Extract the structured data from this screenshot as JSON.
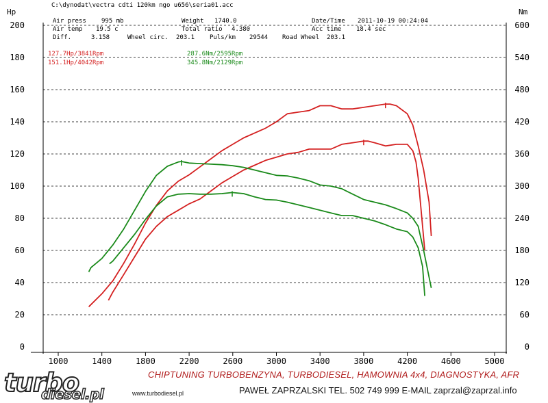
{
  "header": {
    "file_path": "C:\\dynodat\\vectra cdti 120km ngo u656\\seria01.acc",
    "row1": [
      {
        "label": "Air press",
        "value": "995 mb"
      },
      {
        "label": "Weight",
        "value": "1740.0"
      },
      {
        "label": "Date/Time",
        "value": "2011-10-19 00:24:04"
      }
    ],
    "row2": [
      {
        "label": "Air temp",
        "value": "19.5 c"
      },
      {
        "label": "Total ratio",
        "value": "4.380"
      },
      {
        "label": "Acc time",
        "value": "18.4 sec"
      }
    ],
    "row3": [
      {
        "label": "Diff.",
        "value": "3.158"
      },
      {
        "label": "Wheel circ.",
        "value": "203.1"
      },
      {
        "label": "Puls/km",
        "value": "29544"
      },
      {
        "label": "Road Wheel",
        "value": "203.1"
      }
    ]
  },
  "peak_labels": {
    "hp_after": "127.7Hp/3841Rpm",
    "hp_before": "151.1Hp/4042Rpm",
    "nm_after": "287.6Nm/2595Rpm",
    "nm_before": "345.8Nm/2129Rpm"
  },
  "chart_data": {
    "type": "line",
    "xlabel": "",
    "ylabel_left": "Hp",
    "ylabel_right": "Nm",
    "xlim": [
      1000,
      5000
    ],
    "x_ticks": [
      1000,
      1400,
      1800,
      2200,
      2600,
      3000,
      3400,
      3800,
      4200,
      4600,
      5000
    ],
    "ylim_left": [
      0,
      200
    ],
    "y_ticks_left": [
      0,
      20,
      40,
      60,
      80,
      100,
      120,
      140,
      160,
      180,
      200
    ],
    "ylim_right": [
      0,
      600
    ],
    "y_ticks_right": [
      0,
      60,
      120,
      180,
      240,
      300,
      360,
      420,
      480,
      540,
      600
    ],
    "grid": true,
    "series": [
      {
        "name": "151.1Hp/4042Rpm",
        "axis": "left",
        "color": "#d42020",
        "x": [
          1280,
          1400,
          1500,
          1600,
          1700,
          1800,
          1900,
          2000,
          2100,
          2200,
          2300,
          2400,
          2500,
          2600,
          2700,
          2800,
          2900,
          3000,
          3100,
          3200,
          3300,
          3400,
          3500,
          3600,
          3700,
          3800,
          3900,
          4000,
          4042,
          4100,
          4200,
          4250,
          4300,
          4350,
          4400,
          4420
        ],
        "y": [
          25,
          33,
          41,
          52,
          64,
          77,
          88,
          97,
          103,
          107,
          112,
          117,
          122,
          126,
          130,
          133,
          136,
          140,
          145,
          146,
          147,
          150,
          150,
          148,
          148,
          149,
          150,
          151,
          151,
          150,
          145,
          138,
          125,
          110,
          90,
          69
        ]
      },
      {
        "name": "127.7Hp/3841Rpm",
        "axis": "left",
        "color": "#d42020",
        "x": [
          1460,
          1500,
          1600,
          1700,
          1800,
          1900,
          2000,
          2100,
          2200,
          2300,
          2400,
          2500,
          2600,
          2700,
          2800,
          2900,
          3000,
          3100,
          3200,
          3300,
          3400,
          3500,
          3600,
          3700,
          3800,
          3841,
          3900,
          4000,
          4100,
          4200,
          4250,
          4280,
          4300,
          4320,
          4340,
          4360
        ],
        "y": [
          29,
          34,
          45,
          56,
          67,
          75,
          81,
          85,
          89,
          92,
          97,
          102,
          106,
          110,
          113,
          116,
          118,
          120,
          121,
          123,
          123,
          123,
          126,
          127,
          128,
          128,
          127,
          125,
          126,
          126,
          122,
          115,
          105,
          90,
          75,
          60
        ]
      },
      {
        "name": "345.8Nm/2129Rpm",
        "axis": "right",
        "color": "#1a8a1a",
        "x": [
          1280,
          1300,
          1400,
          1500,
          1600,
          1700,
          1800,
          1900,
          2000,
          2100,
          2129,
          2200,
          2300,
          2400,
          2500,
          2600,
          2700,
          2800,
          2900,
          3000,
          3100,
          3200,
          3300,
          3400,
          3500,
          3600,
          3700,
          3800,
          3900,
          4000,
          4100,
          4200,
          4250,
          4300,
          4350,
          4400,
          4420
        ],
        "y": [
          140,
          148,
          165,
          190,
          220,
          255,
          290,
          320,
          337,
          345,
          346,
          343,
          342,
          341,
          340,
          338,
          335,
          330,
          325,
          320,
          319,
          315,
          310,
          302,
          300,
          295,
          285,
          275,
          270,
          265,
          258,
          250,
          240,
          225,
          180,
          130,
          110
        ]
      },
      {
        "name": "287.6Nm/2595Rpm",
        "axis": "right",
        "color": "#1a8a1a",
        "x": [
          1470,
          1500,
          1600,
          1700,
          1800,
          1900,
          2000,
          2100,
          2200,
          2300,
          2400,
          2500,
          2595,
          2700,
          2800,
          2900,
          3000,
          3100,
          3200,
          3300,
          3400,
          3500,
          3600,
          3700,
          3800,
          3900,
          4000,
          4100,
          4200,
          4250,
          4300,
          4340,
          4360
        ],
        "y": [
          155,
          160,
          185,
          210,
          238,
          263,
          280,
          285,
          286,
          285,
          285,
          286,
          288,
          286,
          280,
          275,
          274,
          270,
          265,
          260,
          255,
          250,
          245,
          245,
          240,
          235,
          228,
          220,
          215,
          205,
          185,
          150,
          95
        ]
      }
    ]
  },
  "footer": {
    "line1": "CHIPTUNING TURBOBENZYNA, TURBODIESEL, HAMOWNIA 4x4, DIAGNOSTYKA, AFR",
    "line2": "PAWEŁ ZAPRZALSKI TEL. 502 749 999 E-MAIL zaprzal@zaprzal.info",
    "website": "www.turbodiesel.pl",
    "logo_main": "turbo",
    "logo_sub": "diesel.pl"
  }
}
